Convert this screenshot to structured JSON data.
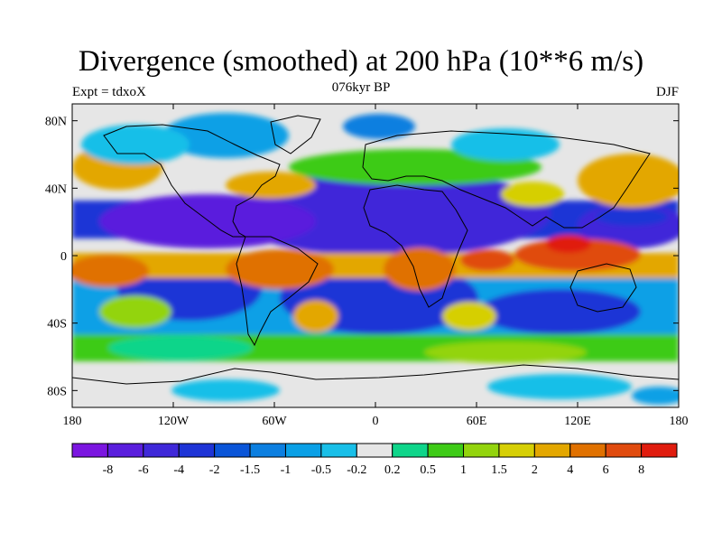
{
  "figure": {
    "title": "Divergence (smoothed) at 200 hPa (10**6 m/s)",
    "left_string": "Expt = tdxoX",
    "center_string": "076kyr BP",
    "right_string": "DJF"
  },
  "map": {
    "projection": "cylindrical-equidistant",
    "lon_range": [
      -180,
      180
    ],
    "lat_range": [
      -90,
      90
    ],
    "x_ticks": [
      {
        "lon": -180,
        "label": "180"
      },
      {
        "lon": -120,
        "label": "120W"
      },
      {
        "lon": -60,
        "label": "60W"
      },
      {
        "lon": 0,
        "label": "0"
      },
      {
        "lon": 60,
        "label": "60E"
      },
      {
        "lon": 120,
        "label": "120E"
      },
      {
        "lon": 180,
        "label": "180"
      }
    ],
    "y_ticks": [
      {
        "lat": 80,
        "label": "80N"
      },
      {
        "lat": 40,
        "label": "40N"
      },
      {
        "lat": 0,
        "label": "0"
      },
      {
        "lat": -40,
        "label": "40S"
      },
      {
        "lat": -80,
        "label": "80S"
      }
    ]
  },
  "colorbar": {
    "colors": [
      "#7b16e0",
      "#5a1edd",
      "#3f28d9",
      "#1e34d6",
      "#0a55d8",
      "#0c7fe0",
      "#0aa0e6",
      "#19bfe8",
      "#e6e6e6",
      "#0fd58a",
      "#3ecb17",
      "#93d40d",
      "#d6cf05",
      "#e3a700",
      "#e07100",
      "#e04b0e",
      "#e01c0e"
    ],
    "labels": [
      "-8",
      "-6",
      "-4",
      "-2",
      "-1.5",
      "-1",
      "-0.5",
      "-0.2",
      "0.2",
      "0.5",
      "1",
      "1.5",
      "2",
      "4",
      "6",
      "8"
    ]
  }
}
